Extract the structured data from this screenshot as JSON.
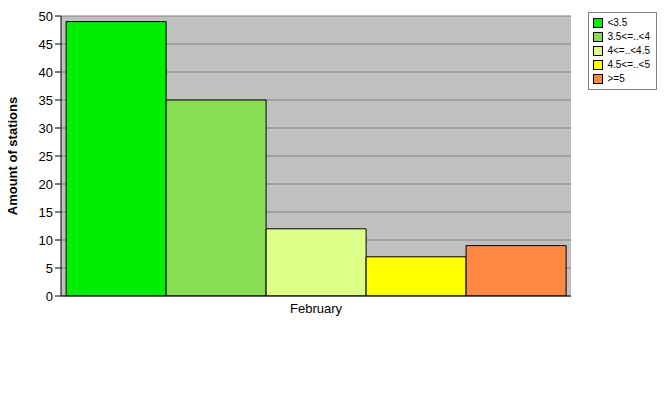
{
  "chart_data": {
    "type": "bar",
    "categories": [
      "February"
    ],
    "y_label": "Amount of stations",
    "series": [
      {
        "name": "<3.5",
        "color": "#00ee00",
        "values": [
          49
        ]
      },
      {
        "name": "3.5<=..<4",
        "color": "#88dd55",
        "values": [
          35
        ]
      },
      {
        "name": "4<=..<4.5",
        "color": "#ddff88",
        "values": [
          12
        ]
      },
      {
        "name": "4.5<=..<5",
        "color": "#ffff00",
        "values": [
          7
        ]
      },
      {
        "name": ">=5",
        "color": "#ff8844",
        "values": [
          9
        ]
      }
    ],
    "ylim": [
      0,
      50
    ],
    "yticks": [
      0,
      5,
      10,
      15,
      20,
      25,
      30,
      35,
      40,
      45,
      50
    ],
    "grid": true,
    "legend": "top-right"
  }
}
